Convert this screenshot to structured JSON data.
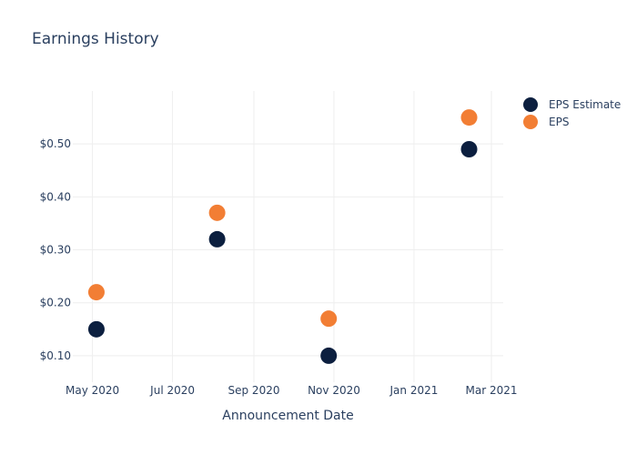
{
  "chart_data": {
    "type": "scatter",
    "title": "Earnings History",
    "xlabel": "Announcement Date",
    "ylabel": "",
    "x_axis_type": "date",
    "xlim": [
      "2020-04-16",
      "2021-03-10"
    ],
    "ylim": [
      0.05,
      0.6
    ],
    "x_ticks": [
      {
        "value": "2020-05-01",
        "label": "May 2020"
      },
      {
        "value": "2020-07-01",
        "label": "Jul 2020"
      },
      {
        "value": "2020-09-01",
        "label": "Sep 2020"
      },
      {
        "value": "2020-11-01",
        "label": "Nov 2020"
      },
      {
        "value": "2021-01-01",
        "label": "Jan 2021"
      },
      {
        "value": "2021-03-01",
        "label": "Mar 2021"
      }
    ],
    "y_ticks": [
      {
        "value": 0.1,
        "label": "$0.10"
      },
      {
        "value": 0.2,
        "label": "$0.20"
      },
      {
        "value": 0.3,
        "label": "$0.30"
      },
      {
        "value": 0.4,
        "label": "$0.40"
      },
      {
        "value": 0.5,
        "label": "$0.50"
      }
    ],
    "grid": true,
    "legend_position": "top-right",
    "series": [
      {
        "name": "EPS Estimate",
        "color": "#0c1f3f",
        "points": [
          {
            "x": "2020-05-04",
            "y": 0.15
          },
          {
            "x": "2020-08-04",
            "y": 0.32
          },
          {
            "x": "2020-10-28",
            "y": 0.1
          },
          {
            "x": "2021-02-12",
            "y": 0.49
          }
        ]
      },
      {
        "name": "EPS",
        "color": "#f27e34",
        "points": [
          {
            "x": "2020-05-04",
            "y": 0.22
          },
          {
            "x": "2020-08-04",
            "y": 0.37
          },
          {
            "x": "2020-10-28",
            "y": 0.17
          },
          {
            "x": "2021-02-12",
            "y": 0.55
          }
        ]
      }
    ]
  }
}
